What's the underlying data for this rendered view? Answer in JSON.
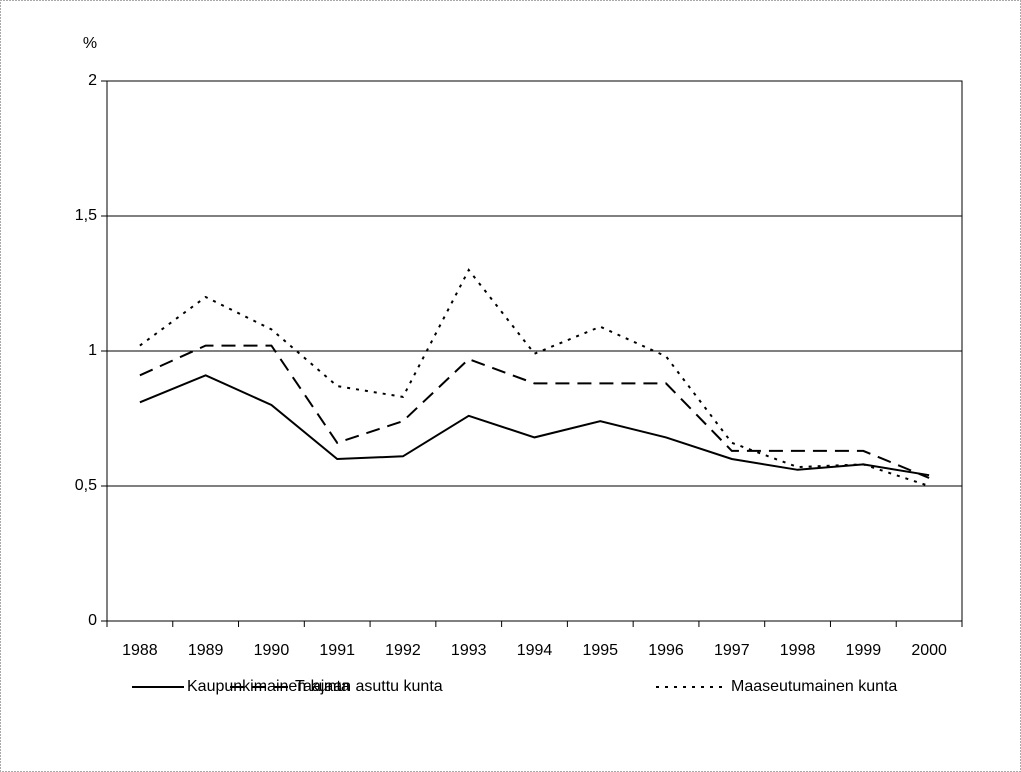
{
  "chart_data": {
    "type": "line",
    "y_axis_label": "%",
    "categories": [
      "1988",
      "1989",
      "1990",
      "1991",
      "1992",
      "1993",
      "1994",
      "1995",
      "1996",
      "1997",
      "1998",
      "1999",
      "2000"
    ],
    "series": [
      {
        "name": "Kaupunkimainen kunta",
        "color": "#000000",
        "dash": "solid",
        "values": [
          0.81,
          0.91,
          0.8,
          0.6,
          0.61,
          0.76,
          0.68,
          0.74,
          0.68,
          0.6,
          0.56,
          0.58,
          0.54
        ]
      },
      {
        "name": "Taajaan asuttu kunta",
        "color": "#000000",
        "dash": "dashed",
        "values": [
          0.91,
          1.02,
          1.02,
          0.66,
          0.74,
          0.97,
          0.88,
          0.88,
          0.88,
          0.63,
          0.63,
          0.63,
          0.53
        ]
      },
      {
        "name": "Maaseutumainen kunta",
        "color": "#000000",
        "dash": "dotted",
        "values": [
          1.02,
          1.2,
          1.08,
          0.87,
          0.83,
          1.3,
          0.99,
          1.09,
          0.98,
          0.66,
          0.57,
          0.58,
          0.5
        ]
      }
    ],
    "ylim": [
      0,
      2
    ],
    "yticks": [
      0,
      {
        "value": 0.5,
        "label": "0,5"
      },
      1,
      {
        "value": 1.5,
        "label": "1,5"
      },
      2
    ],
    "grid": true,
    "legend": "bottom"
  }
}
